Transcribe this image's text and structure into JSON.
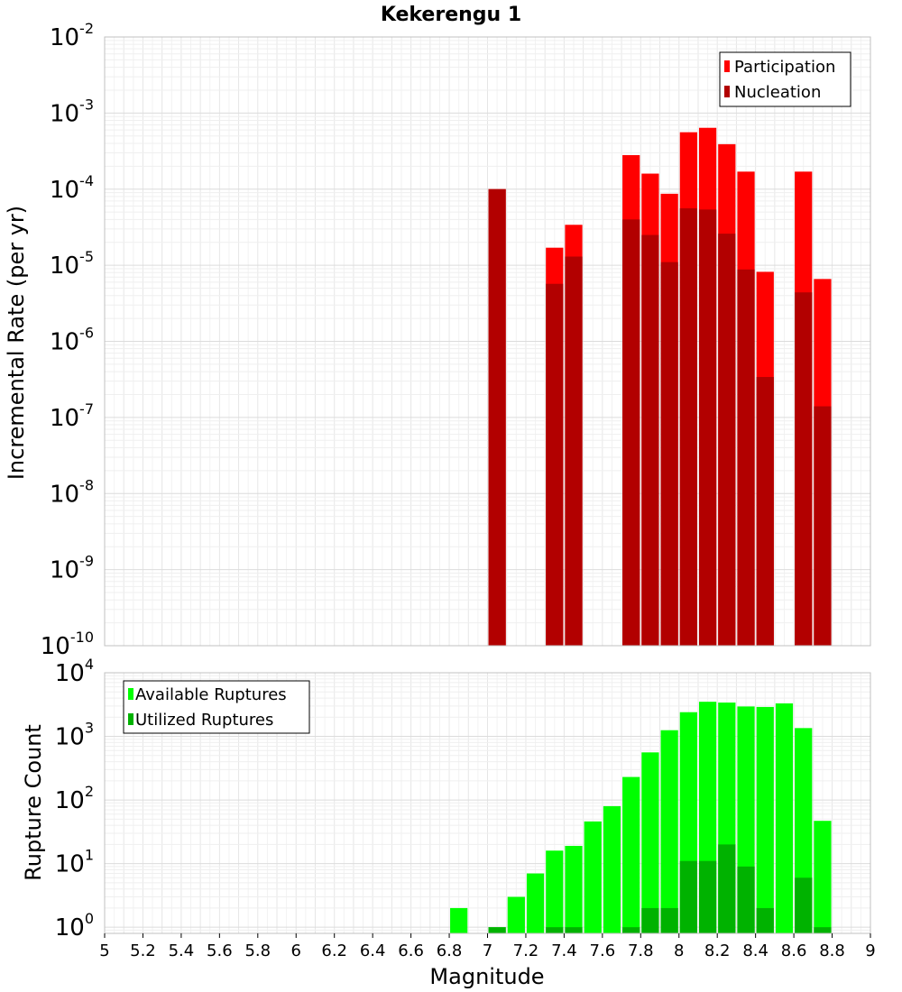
{
  "title": "Kekerengu 1",
  "xlabel": "Magnitude",
  "colors": {
    "participation": "#ff0000",
    "nucleation": "#b20000",
    "available": "#00ff00",
    "utilized": "#00b200"
  },
  "chart_data": [
    {
      "type": "bar",
      "ylabel": "Incremental Rate (per yr)",
      "yscale": "log",
      "ylim": [
        1e-10,
        0.01
      ],
      "xlim": [
        5,
        9
      ],
      "grid": true,
      "legend_position": "top-right",
      "x": [
        7.05,
        7.35,
        7.45,
        7.75,
        7.85,
        7.95,
        8.05,
        8.15,
        8.25,
        8.35,
        8.45,
        8.65,
        8.75
      ],
      "series": [
        {
          "name": "Participation",
          "values": [
            0.0001,
            1.7e-05,
            3.4e-05,
            0.00028,
            0.00016,
            8.7e-05,
            0.00056,
            0.00064,
            0.00039,
            0.00017,
            8.2e-06,
            0.00017,
            6.6e-06
          ]
        },
        {
          "name": "Nucleation",
          "values": [
            0.0001,
            5.7e-06,
            1.3e-05,
            4e-05,
            2.5e-05,
            1.1e-05,
            5.6e-05,
            5.4e-05,
            2.6e-05,
            8.8e-06,
            3.4e-07,
            4.4e-06,
            1.4e-07
          ]
        }
      ]
    },
    {
      "type": "bar",
      "ylabel": "Rupture Count",
      "xlabel": "Magnitude",
      "yscale": "log",
      "ylim": [
        0.8,
        10000
      ],
      "xlim": [
        5,
        9
      ],
      "grid": true,
      "legend_position": "top-left",
      "x": [
        6.85,
        7.05,
        7.15,
        7.25,
        7.35,
        7.45,
        7.55,
        7.65,
        7.75,
        7.85,
        7.95,
        8.05,
        8.15,
        8.25,
        8.35,
        8.45,
        8.55,
        8.65,
        8.75
      ],
      "series": [
        {
          "name": "Available Ruptures",
          "values": [
            2,
            1,
            3,
            7,
            16,
            19,
            46,
            80,
            230,
            560,
            1250,
            2400,
            3500,
            3400,
            2950,
            2900,
            3300,
            1350,
            47
          ]
        },
        {
          "name": "Utilized Ruptures",
          "values": [
            0,
            1,
            0,
            0,
            1,
            1,
            0,
            0,
            1,
            2,
            2,
            11,
            11,
            20,
            9,
            2,
            0,
            6,
            1
          ]
        }
      ]
    }
  ],
  "xticks": [
    "5",
    "5.2",
    "5.4",
    "5.6",
    "5.8",
    "6",
    "6.2",
    "6.4",
    "6.6",
    "6.8",
    "7",
    "7.2",
    "7.4",
    "7.6",
    "7.8",
    "8",
    "8.2",
    "8.4",
    "8.6",
    "8.8",
    "9"
  ],
  "yticks_top": [
    {
      "base": "10",
      "exp": "-2"
    },
    {
      "base": "10",
      "exp": "-3"
    },
    {
      "base": "10",
      "exp": "-4"
    },
    {
      "base": "10",
      "exp": "-5"
    },
    {
      "base": "10",
      "exp": "-6"
    },
    {
      "base": "10",
      "exp": "-7"
    },
    {
      "base": "10",
      "exp": "-8"
    },
    {
      "base": "10",
      "exp": "-9"
    },
    {
      "base": "10",
      "exp": "-10"
    }
  ],
  "yticks_bottom": [
    {
      "base": "10",
      "exp": "4"
    },
    {
      "base": "10",
      "exp": "3"
    },
    {
      "base": "10",
      "exp": "2"
    },
    {
      "base": "10",
      "exp": "1"
    },
    {
      "base": "10",
      "exp": "0"
    }
  ]
}
